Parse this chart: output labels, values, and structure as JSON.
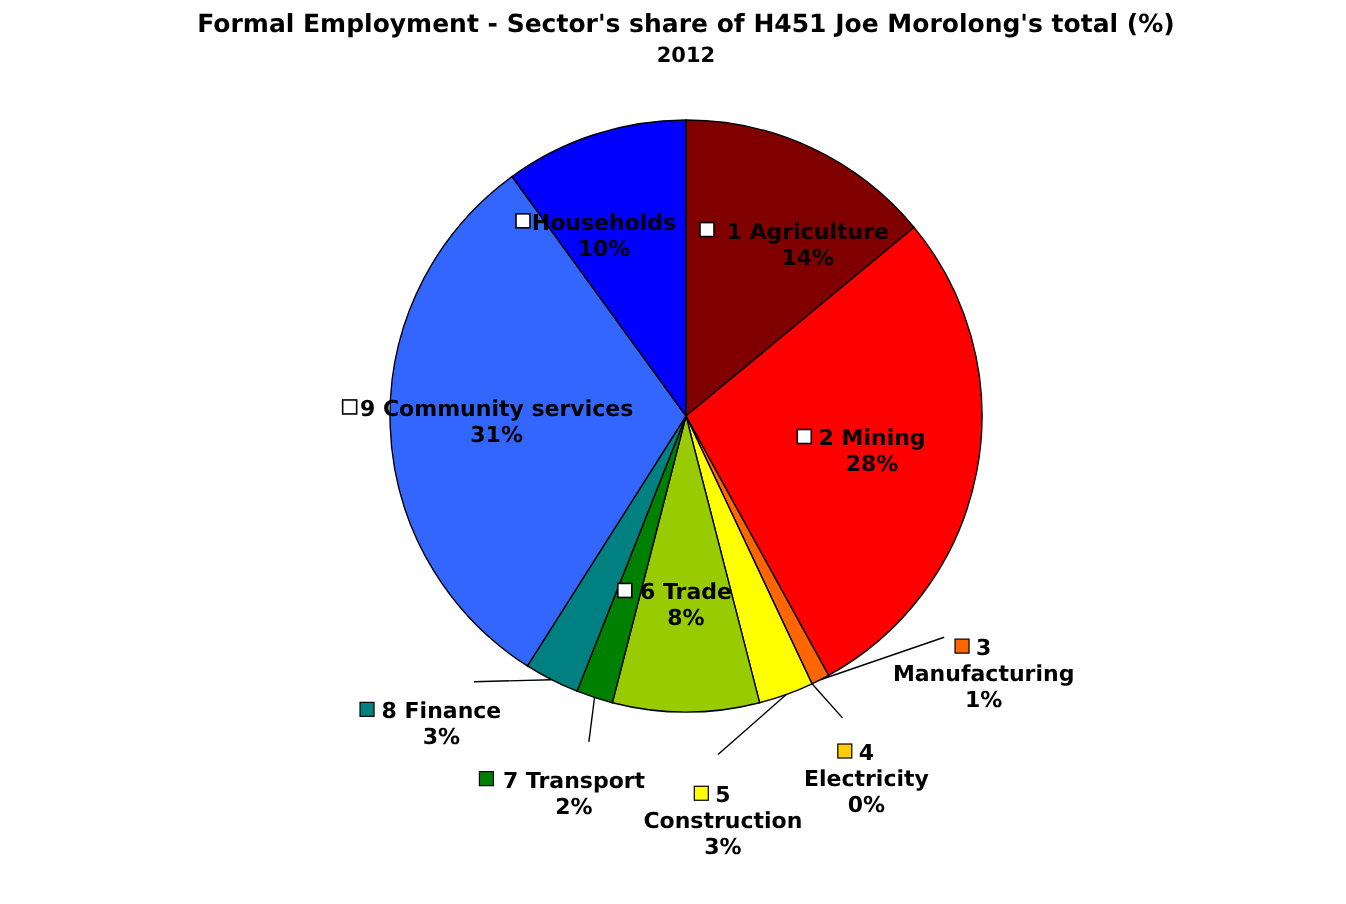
{
  "chart_data": {
    "type": "pie",
    "title": "Formal Employment - Sector's share of H451 Joe Morolong's total (%)",
    "subtitle": "2012",
    "categories": [
      "1 Agriculture",
      "2 Mining",
      "3 Manufacturing",
      "4 Electricity",
      "5 Construction",
      "6 Trade",
      "7 Transport",
      "8 Finance",
      "9 Community services",
      "Households"
    ],
    "values": [
      14,
      28,
      1,
      0,
      3,
      8,
      2,
      3,
      31,
      10
    ],
    "colors": [
      "#800000",
      "#ff0000",
      "#ff6600",
      "#ffcc00",
      "#ffff00",
      "#99cc00",
      "#008000",
      "#008080",
      "#3366ff",
      "#0000ff"
    ],
    "value_labels": [
      "14%",
      "28%",
      "1%",
      "0%",
      "3%",
      "8%",
      "2%",
      "3%",
      "31%",
      "10%"
    ],
    "legend": "center"
  }
}
